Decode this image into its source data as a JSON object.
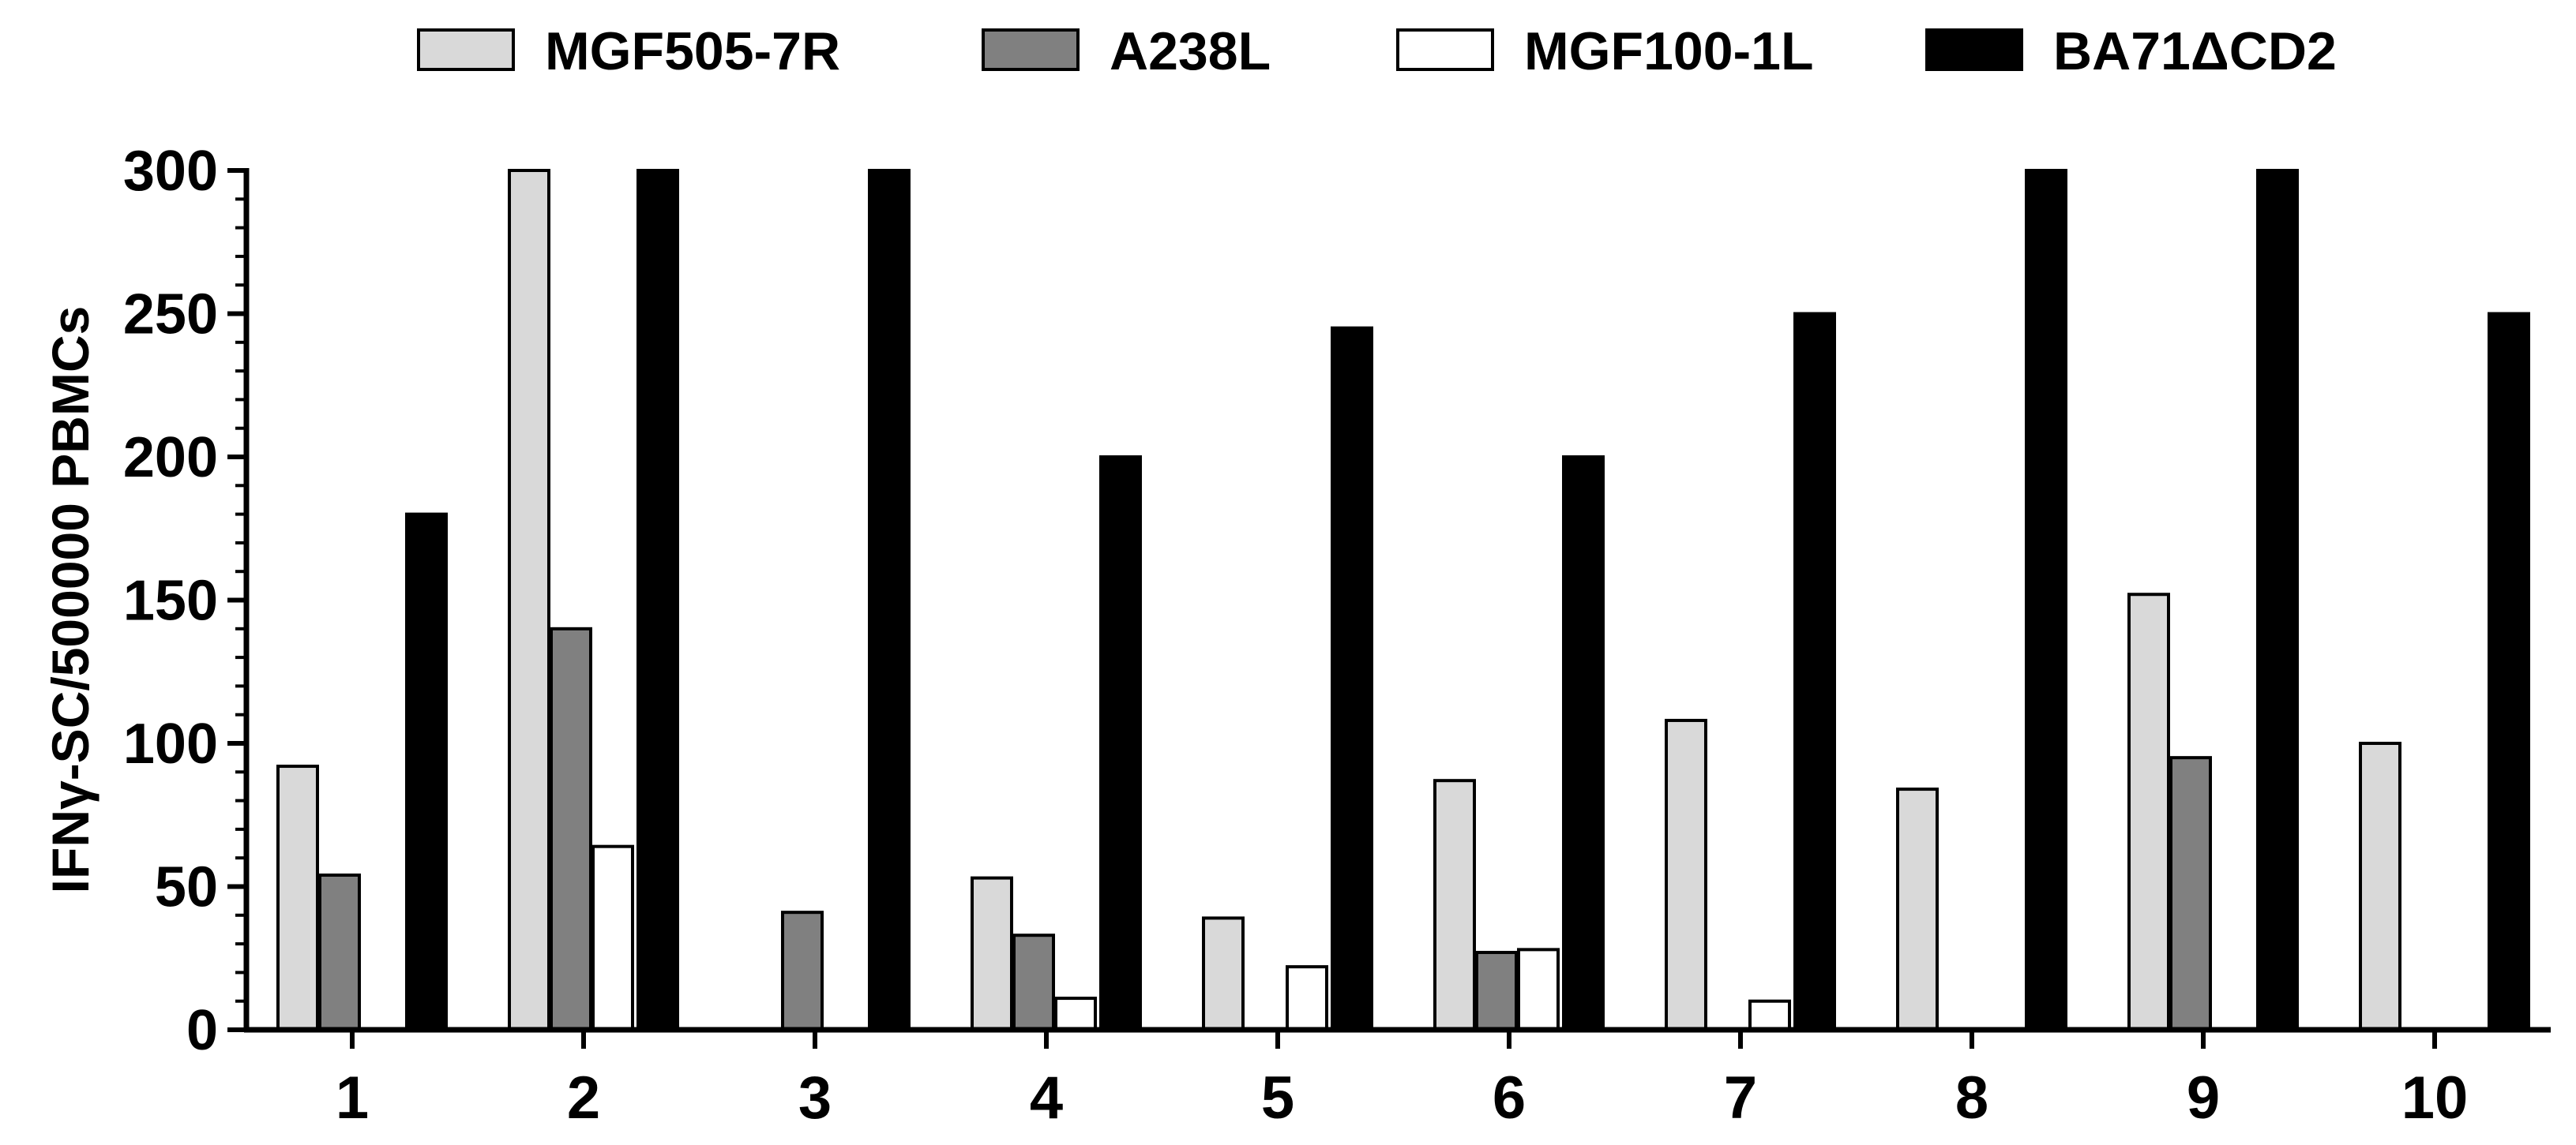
{
  "chart_data": {
    "type": "bar",
    "title": "",
    "xlabel": "",
    "ylabel": "IFNγ-SC/500000 PBMCs",
    "ylim": [
      0,
      300
    ],
    "y_ticks": [
      "0",
      "50",
      "100",
      "150",
      "200",
      "250",
      "300"
    ],
    "grid": false,
    "legend_position": "top",
    "categories": [
      "1",
      "2",
      "3",
      "4",
      "5",
      "6",
      "7",
      "8",
      "9",
      "10"
    ],
    "series": [
      {
        "name": "MGF505-7R",
        "color": "#d9d9d9",
        "values": [
          92,
          300,
          0,
          53,
          39,
          87,
          108,
          84,
          152,
          100
        ]
      },
      {
        "name": "A238L",
        "color": "#808080",
        "values": [
          54,
          140,
          41,
          33,
          0,
          27,
          0,
          0,
          95,
          0
        ]
      },
      {
        "name": "MGF100-1L",
        "color": "#ffffff",
        "values": [
          0,
          64,
          0,
          11,
          22,
          28,
          10,
          0,
          0,
          0
        ]
      },
      {
        "name": "BA71ΔCD2",
        "color": "#000000",
        "values": [
          180,
          300,
          300,
          200,
          245,
          200,
          250,
          300,
          300,
          250
        ]
      }
    ]
  }
}
